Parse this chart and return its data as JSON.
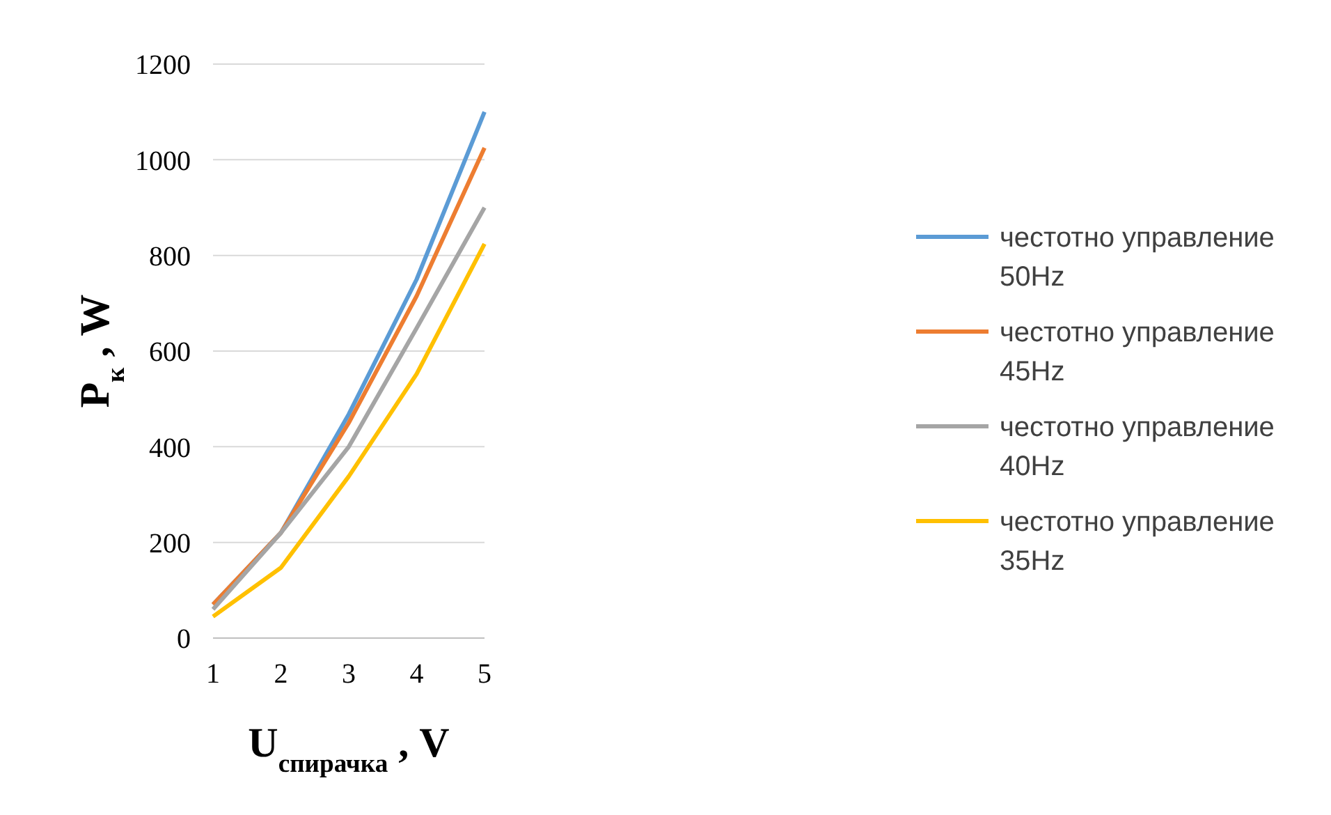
{
  "chart_data": {
    "type": "line",
    "xlabel": "U$_{спирачка}$ , V",
    "ylabel": "P$_{к}$ , W",
    "categories": [
      "1",
      "2",
      "3",
      "4",
      "5"
    ],
    "series": [
      {
        "name": "честотно управление 50Hz",
        "color": "#5b9bd5",
        "values": [
          70,
          220,
          468,
          750,
          1100
        ]
      },
      {
        "name": "честотно управление 45Hz",
        "color": "#ed7d31",
        "values": [
          70,
          220,
          450,
          715,
          1025
        ]
      },
      {
        "name": "честотно управление 40Hz",
        "color": "#a5a5a5",
        "values": [
          60,
          220,
          400,
          648,
          900
        ]
      },
      {
        "name": "честотно управление 35Hz",
        "color": "#ffc000",
        "values": [
          45,
          147,
          338,
          552,
          824
        ]
      }
    ],
    "ylim": [
      0,
      1200
    ],
    "yticks": [
      0,
      200,
      400,
      600,
      800,
      1000,
      1200
    ],
    "grid": "y",
    "legend": "right",
    "marker": "none",
    "line_style": "solid"
  }
}
